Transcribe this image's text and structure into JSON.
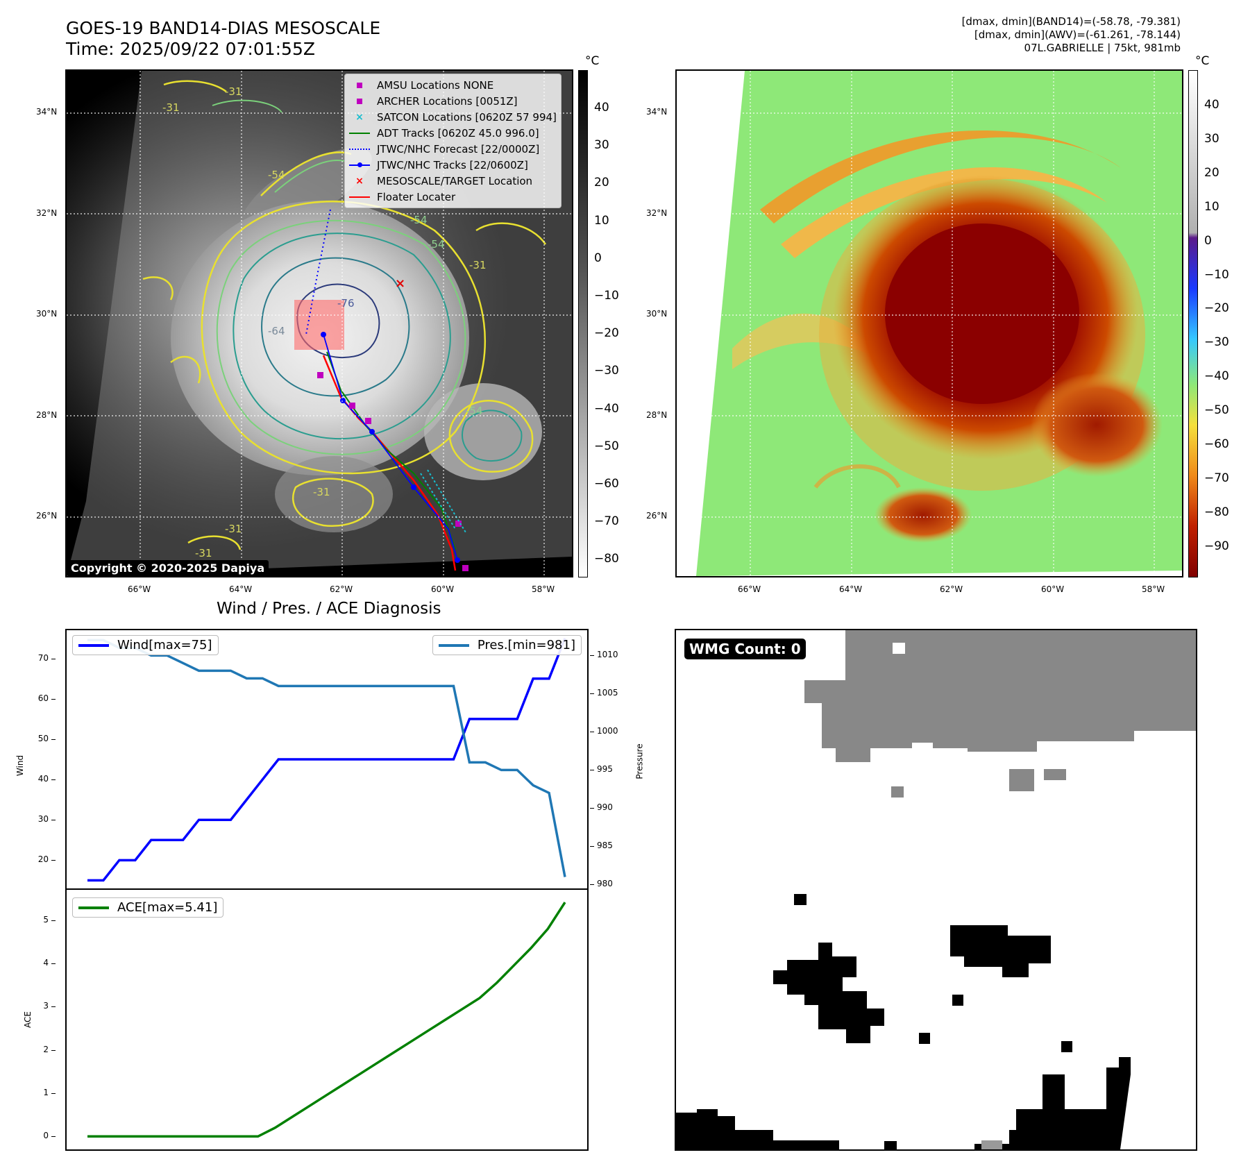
{
  "header": {
    "title_line1": "GOES-19 BAND14-DIAS MESOSCALE",
    "title_line2": "Time: 2025/09/22 07:01:55Z",
    "info_line1": "[dmax, dmin](BAND14)=(-58.78, -79.381)",
    "info_line2": "[dmax, dmin](AWV)=(-61.261, -78.144)",
    "info_line3": "07L.GABRIELLE | 75kt, 981mb"
  },
  "map": {
    "lat_labels": [
      "34°N",
      "32°N",
      "30°N",
      "28°N",
      "26°N"
    ],
    "lon_labels": [
      "66°W",
      "64°W",
      "62°W",
      "60°W",
      "58°W"
    ],
    "contour_labels": [
      "-31",
      "-31",
      "-54",
      "-54",
      "-54",
      "-31",
      "-76",
      "-64",
      "-54",
      "-31",
      "-31",
      "-31"
    ],
    "copyright": "Copyright © 2020-2025 Dapiya",
    "legend": [
      {
        "label": "AMSU Locations NONE",
        "color": "#bf00bf",
        "icon": "square-marker"
      },
      {
        "label": "ARCHER Locations [0051Z]",
        "color": "#bf00bf",
        "icon": "square-marker"
      },
      {
        "label": "SATCON Locations [0620Z 57 994]",
        "color": "#17becf",
        "icon": "x-marker"
      },
      {
        "label": "ADT Tracks [0620Z 45.0 996.0]",
        "color": "#008000",
        "icon": "solid-line"
      },
      {
        "label": "JTWC/NHC Forecast [22/0000Z]",
        "color": "#0000ff",
        "icon": "dotted-line"
      },
      {
        "label": "JTWC/NHC Tracks [22/0600Z]",
        "color": "#0000ff",
        "icon": "line-dot"
      },
      {
        "label": "MESOSCALE/TARGET Location",
        "color": "#ff0000",
        "icon": "x-marker"
      },
      {
        "label": "Floater Locater",
        "color": "#ff0000",
        "icon": "solid-line"
      }
    ]
  },
  "colorbar_left": {
    "unit": "°C",
    "ticks": [
      "40",
      "30",
      "20",
      "10",
      "0",
      "−10",
      "−20",
      "−30",
      "−40",
      "−50",
      "−60",
      "−70",
      "−80"
    ]
  },
  "colorbar_right": {
    "unit": "°C",
    "ticks": [
      "40",
      "30",
      "20",
      "10",
      "0",
      "−10",
      "−20",
      "−30",
      "−40",
      "−50",
      "−60",
      "−70",
      "−80",
      "−90"
    ]
  },
  "diagnosis": {
    "title": "Wind / Pres. / ACE Diagnosis",
    "wind_legend": "Wind[max=75]",
    "pres_legend": "Pres.[min=981]",
    "ace_legend": "ACE[max=5.41]",
    "wind_ylabel": "Wind",
    "pres_ylabel": "Pressure",
    "ace_ylabel": "ACE",
    "wind_ticks": [
      "70",
      "60",
      "50",
      "40",
      "30",
      "20"
    ],
    "pres_ticks": [
      "1010",
      "1005",
      "1000",
      "995",
      "990",
      "985",
      "980"
    ],
    "ace_ticks": [
      "5",
      "4",
      "3",
      "2",
      "1",
      "0"
    ]
  },
  "wmg": {
    "label": "WMG Count: 0"
  },
  "chart_data": [
    {
      "type": "line",
      "title": "Wind / Pres. / ACE Diagnosis",
      "series": [
        {
          "name": "Wind[max=75]",
          "axis": "left",
          "color": "#0000ff",
          "values": [
            15,
            15,
            20,
            20,
            25,
            25,
            25,
            30,
            30,
            30,
            35,
            40,
            45,
            45,
            45,
            45,
            45,
            45,
            45,
            45,
            45,
            45,
            45,
            45,
            55,
            55,
            55,
            55,
            65,
            65,
            75
          ]
        },
        {
          "name": "Pres.[min=981]",
          "axis": "right",
          "color": "#1f77b4",
          "values": [
            1012,
            1012,
            1011,
            1011,
            1010,
            1010,
            1009,
            1008,
            1008,
            1008,
            1007,
            1007,
            1006,
            1006,
            1006,
            1006,
            1006,
            1006,
            1006,
            1006,
            1006,
            1006,
            1006,
            1006,
            996,
            996,
            995,
            995,
            993,
            992,
            981
          ]
        }
      ],
      "ylabel": "Wind",
      "y2label": "Pressure",
      "ylim": [
        13,
        77
      ],
      "y2lim": [
        979.5,
        1013.3
      ]
    },
    {
      "type": "line",
      "series": [
        {
          "name": "ACE[max=5.41]",
          "color": "#008000",
          "values": [
            0,
            0,
            0,
            0,
            0,
            0,
            0,
            0,
            0,
            0,
            0,
            0.2,
            0.45,
            0.7,
            0.95,
            1.2,
            1.45,
            1.7,
            1.95,
            2.2,
            2.45,
            2.7,
            2.95,
            3.2,
            3.55,
            3.95,
            4.35,
            4.8,
            5.41
          ]
        }
      ],
      "ylabel": "ACE",
      "ylim": [
        -0.3,
        5.7
      ]
    }
  ]
}
